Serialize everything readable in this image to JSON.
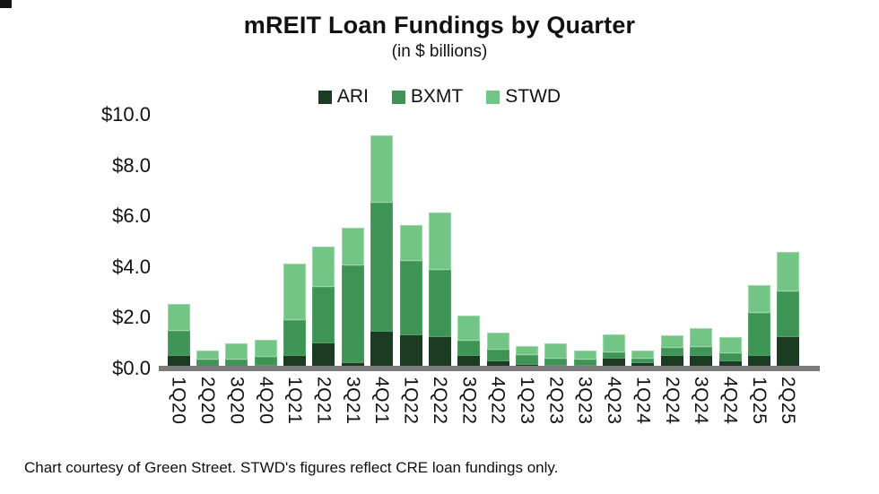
{
  "title": "mREIT Loan Fundings by Quarter",
  "subtitle": "(in $ billions)",
  "footer": "Chart courtesy of Green Street. STWD's figures reflect CRE loan fundings only.",
  "colors": {
    "ari": "#1c3b23",
    "bxmt": "#3e9455",
    "stwd": "#73c585",
    "axis": "#7b7b7b",
    "text": "#111111"
  },
  "chart_data": {
    "type": "bar",
    "stacked": true,
    "title": "mREIT Loan Fundings by Quarter",
    "subtitle": "(in $ billions)",
    "xlabel": "",
    "ylabel": "",
    "ylim": [
      0,
      10
    ],
    "grid": false,
    "legend_position": "top",
    "yticks_top_to_bottom": [
      "$10.0",
      "$8.0",
      "$6.0",
      "$4.0",
      "$2.0",
      "$0.0"
    ],
    "categories": [
      "1Q20",
      "2Q20",
      "3Q20",
      "4Q20",
      "1Q21",
      "2Q21",
      "3Q21",
      "4Q21",
      "1Q22",
      "2Q22",
      "3Q22",
      "4Q22",
      "1Q23",
      "2Q23",
      "3Q23",
      "4Q23",
      "1Q24",
      "2Q24",
      "3Q24",
      "4Q24",
      "1Q25",
      "2Q25"
    ],
    "series": [
      {
        "name": "ARI",
        "color": "#1c3b23",
        "values": [
          0.5,
          0.05,
          0.05,
          0.1,
          0.5,
          1.0,
          0.2,
          1.45,
          1.3,
          1.25,
          0.5,
          0.3,
          0.15,
          0.1,
          0.1,
          0.4,
          0.2,
          0.5,
          0.5,
          0.3,
          0.5,
          1.25
        ]
      },
      {
        "name": "BXMT",
        "color": "#3e9455",
        "values": [
          1.0,
          0.3,
          0.3,
          0.35,
          1.4,
          2.2,
          3.85,
          5.1,
          2.95,
          2.65,
          0.6,
          0.45,
          0.4,
          0.3,
          0.25,
          0.25,
          0.2,
          0.3,
          0.35,
          0.3,
          1.7,
          1.8
        ]
      },
      {
        "name": "STWD",
        "color": "#73c585",
        "values": [
          1.05,
          0.35,
          0.65,
          0.7,
          2.25,
          1.6,
          1.5,
          2.65,
          1.4,
          2.25,
          1.0,
          0.65,
          0.35,
          0.6,
          0.35,
          0.7,
          0.3,
          0.5,
          0.75,
          0.65,
          1.1,
          1.55
        ]
      }
    ]
  }
}
